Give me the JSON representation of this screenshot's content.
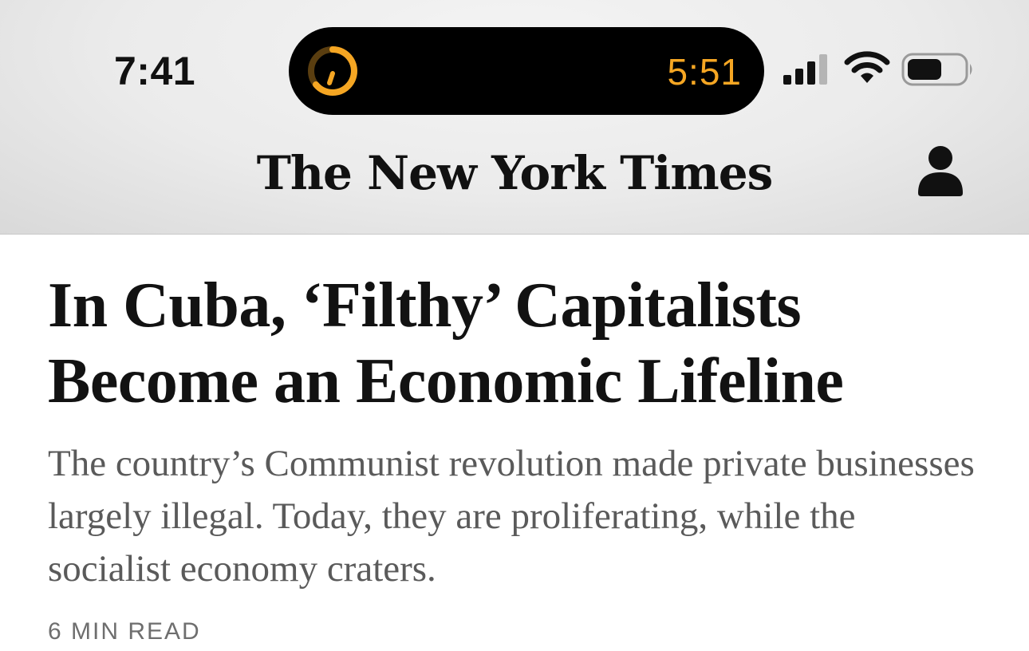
{
  "status_bar": {
    "time": "7:41",
    "island_timer": "5:51",
    "icons": [
      "timer-icon",
      "cellular-signal-icon",
      "wifi-icon",
      "battery-icon"
    ]
  },
  "header": {
    "masthead": "The New York Times",
    "account_icon": "person-icon"
  },
  "article": {
    "headline": "In Cuba, ‘Filthy’ Capitalists Become an Economic Lifeline",
    "summary": "The country’s Communist revolution made private businesses largely illegal. Today, they are proliferating, while the socialist economy craters.",
    "read_time": "6 MIN READ"
  },
  "colors": {
    "timer_accent": "#f5a623",
    "headline": "#121212",
    "summary": "#5a5a5a"
  }
}
